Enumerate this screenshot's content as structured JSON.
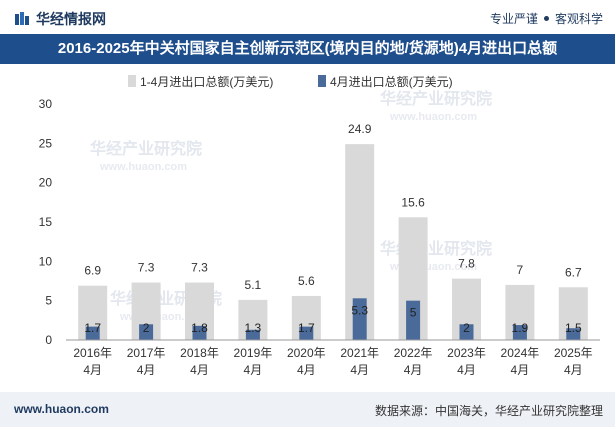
{
  "header": {
    "brand": "华经情报网",
    "tagline_left": "专业严谨",
    "tagline_right": "客观科学"
  },
  "footer": {
    "url": "www.huaon.com",
    "source": "数据来源：中国海关，华经产业研究院整理"
  },
  "watermark": {
    "text_cn": "华经产业研究院",
    "text_en": "www.huaon.com"
  },
  "colors": {
    "title_bg": "#1f4e8c",
    "series_total": "#d9d9d9",
    "series_april": "#4a6a9a"
  },
  "chart_data": {
    "type": "bar",
    "title": "2016-2025年中关村国家自主创新示范区(境内目的地/货源地)4月进出口总额",
    "categories": [
      [
        "2016年",
        "4月"
      ],
      [
        "2017年",
        "4月"
      ],
      [
        "2018年",
        "4月"
      ],
      [
        "2019年",
        "4月"
      ],
      [
        "2020年",
        "4月"
      ],
      [
        "2021年",
        "4月"
      ],
      [
        "2022年",
        "4月"
      ],
      [
        "2023年",
        "4月"
      ],
      [
        "2024年",
        "4月"
      ],
      [
        "2025年",
        "4月"
      ]
    ],
    "series": [
      {
        "name": "1-4月进出口总额(万美元)",
        "values": [
          6.9,
          7.3,
          7.3,
          5.1,
          5.6,
          24.9,
          15.6,
          7.8,
          7,
          6.7
        ],
        "labels": [
          "6.9",
          "7.3",
          "7.3",
          "5.1",
          "5.6",
          "24.9",
          "15.6",
          "7.8",
          "7",
          "6.7"
        ]
      },
      {
        "name": "4月进出口总额(万美元)",
        "values": [
          1.7,
          2,
          1.8,
          1.3,
          1.7,
          5.3,
          5,
          2,
          1.9,
          1.5
        ],
        "labels": [
          "1.7",
          "2",
          "1.8",
          "1.3",
          "1.7",
          "5.3",
          "5",
          "2",
          "1.9",
          "1.5"
        ]
      }
    ],
    "xlabel": "",
    "ylabel": "",
    "ylim": [
      0,
      30
    ],
    "yticks": [
      0,
      5,
      10,
      15,
      20,
      25,
      30
    ],
    "grid": false,
    "legend_position": "top-left"
  }
}
